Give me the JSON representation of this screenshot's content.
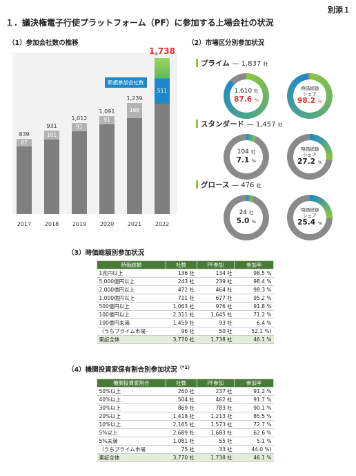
{
  "doc_tag": "別添１",
  "main_title": "１．議決権電子行使プラットフォーム（PF）に参加する上場会社の状況",
  "section1": {
    "title": "（1）参加会社数の推移",
    "new_legend": "新規参加会社数",
    "chart_data": {
      "type": "bar",
      "categories": [
        "2017",
        "2018",
        "2019",
        "2020",
        "2021",
        "2022"
      ],
      "series": [
        {
          "name": "",
          "values": [
            752,
            830,
            921,
            1000,
            1073,
            1227
          ]
        },
        {
          "name": "新規参加会社数",
          "values": [
            87,
            101,
            91,
            91,
            166,
            511
          ]
        }
      ],
      "totals": [
        839,
        931,
        1012,
        1091,
        1239,
        1738
      ],
      "ylim": [
        0,
        1800
      ]
    },
    "totals_text": [
      "839",
      "931",
      "1,012",
      "1,091",
      "1,239",
      "1,738"
    ],
    "new_text": [
      "87",
      "101",
      "91",
      "91",
      "166",
      "511"
    ]
  },
  "section2": {
    "title": "（2）市場区分別参加状況",
    "unit": "社",
    "share_label_line1": "時価総額",
    "share_label_line2": "シェア",
    "segments": [
      {
        "name": "プライム",
        "dash": "—",
        "total": "1,837",
        "count": "1,610",
        "count_pct": "87.6",
        "count_frac": 0.876,
        "share_pct": "98.2",
        "share_frac": 0.982
      },
      {
        "name": "スタンダード",
        "dash": "—",
        "total": "1,457",
        "count": "104",
        "count_pct": "7.1",
        "count_frac": 0.071,
        "share_pct": "27.2",
        "share_frac": 0.272
      },
      {
        "name": "グロース",
        "dash": "—",
        "total": "476",
        "count": "24",
        "count_pct": "5.0",
        "count_frac": 0.05,
        "share_pct": "25.4",
        "share_frac": 0.254
      }
    ],
    "colors": {
      "accent_green": "#8cc63f",
      "accent_blue": "#1e88c8",
      "ring_gray": "#8a8a8a",
      "highlight_red": "#e03131"
    }
  },
  "section3": {
    "title": "（3）時価総額別参加状況",
    "headers": [
      "時価総額",
      "社数",
      "PF参加",
      "参加率"
    ],
    "rows": [
      [
        "1兆円以上",
        "136 社",
        "134 社",
        "98.5 %"
      ],
      [
        "5,000億円以上",
        "243 社",
        "239 社",
        "98.4 %"
      ],
      [
        "2,000億円以上",
        "472 社",
        "464 社",
        "98.3 %"
      ],
      [
        "1,000億円以上",
        "711 社",
        "677 社",
        "95.2 %"
      ],
      [
        "500億円以上",
        "1,063 社",
        "976 社",
        "91.8 %"
      ],
      [
        "100億円以上",
        "2,311 社",
        "1,645 社",
        "71.2 %"
      ],
      [
        "100億円未満",
        "1,459 社",
        "93 社",
        "6.4 %"
      ],
      [
        "（うちプライム市場",
        "96 社",
        "50 社",
        "52.1 %)"
      ]
    ],
    "total_row": [
      "東証全体",
      "3,770 社",
      "1,738 社",
      "46.1 %"
    ]
  },
  "section4": {
    "title": "（4）機関投資家保有割合別参加状況",
    "note": "（*1）",
    "headers": [
      "機関投資家割合",
      "社数",
      "PF参加",
      "参加率"
    ],
    "rows": [
      [
        "50%以上",
        "260 社",
        "237 社",
        "91.2 %"
      ],
      [
        "40%以上",
        "504 社",
        "462 社",
        "91.7 %"
      ],
      [
        "30%以上",
        "869 社",
        "783 社",
        "90.1 %"
      ],
      [
        "20%以上",
        "1,418 社",
        "1,213 社",
        "85.5 %"
      ],
      [
        "10%以上",
        "2,165 社",
        "1,573 社",
        "72.7 %"
      ],
      [
        "5%以上",
        "2,689 社",
        "1,683 社",
        "62.6 %"
      ],
      [
        "5%未満",
        "1,081 社",
        "55 社",
        "5.1 %"
      ],
      [
        "（うちプライム市場",
        "75 社",
        "33 社",
        "44.0 %)"
      ]
    ],
    "total_row": [
      "東証全体",
      "3,770 社",
      "1,738 社",
      "46.1 %"
    ]
  }
}
